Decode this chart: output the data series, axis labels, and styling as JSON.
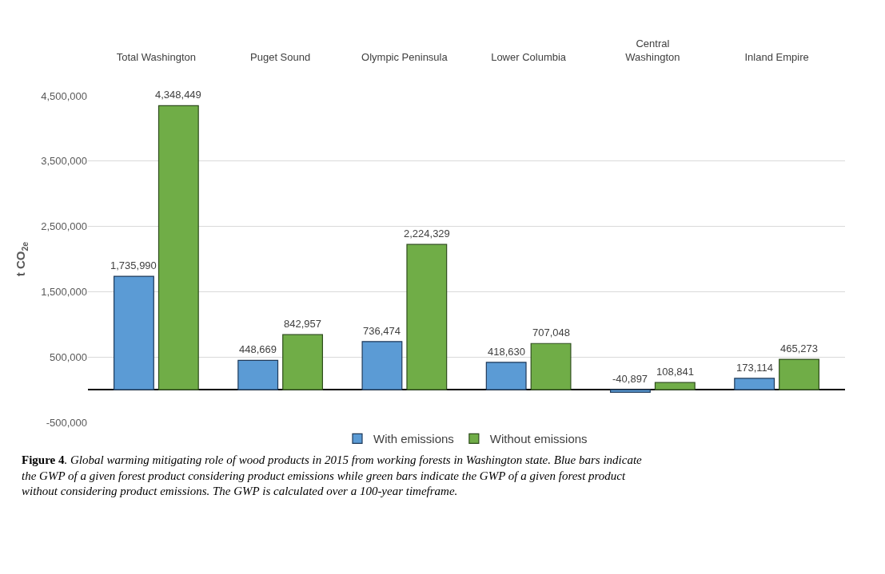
{
  "chart_data": {
    "type": "bar",
    "categories": [
      "Total Washington",
      "Puget Sound",
      "Olympic Peninsula",
      "Lower Columbia",
      "Central\nWashington",
      "Inland Empire"
    ],
    "series": [
      {
        "name": "With emissions",
        "color": "#5b9bd5",
        "values": [
          1735990,
          448669,
          736474,
          418630,
          -40897,
          173114
        ],
        "value_labels": [
          "1,735,990",
          "448,669",
          "736,474",
          "418,630",
          "-40,897",
          "173,114"
        ]
      },
      {
        "name": "Without emissions",
        "color": "#70ad47",
        "values": [
          4348449,
          842957,
          2224329,
          707048,
          108841,
          465273
        ],
        "value_labels": [
          "4,348,449",
          "842,957",
          "2,224,329",
          "707,048",
          "108,841",
          "465,273"
        ]
      }
    ],
    "ylabel": "t CO$_{2e}$",
    "ylim": [
      -500000,
      4500000
    ],
    "yticks": [
      {
        "value": -500000,
        "label": "-500,000"
      },
      {
        "value": 500000,
        "label": "500,000"
      },
      {
        "value": 1500000,
        "label": "1,500,000"
      },
      {
        "value": 2500000,
        "label": "2,500,000"
      },
      {
        "value": 3500000,
        "label": "3,500,000"
      },
      {
        "value": 4500000,
        "label": "4,500,000"
      }
    ],
    "grid": "y",
    "legend": "bottom",
    "annotations": [
      "Figure 4",
      ". Global warming mitigating role of wood products in 2015 from working forests in Washington state. Blue bars indicate the GWP of a given forest product considering product emissions while green bars indicate the GWP of a given forest product without considering product emissions. The GWP is calculated over a 100-year timeframe."
    ]
  }
}
